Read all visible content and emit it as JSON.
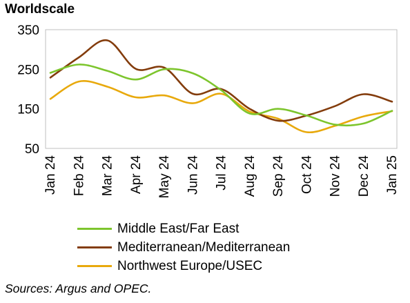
{
  "chart_data": {
    "type": "line",
    "title": "Worldscale",
    "xlabel": "",
    "ylabel": "",
    "categories": [
      "Jan 24",
      "Feb 24",
      "Mar 24",
      "Apr 24",
      "May 24",
      "Jun 24",
      "Jul 24",
      "Aug 24",
      "Sep 24",
      "Oct 24",
      "Nov 24",
      "Dec 24",
      "Jan 25"
    ],
    "ylim": [
      50,
      350
    ],
    "yticks": [
      50,
      150,
      250,
      350
    ],
    "grid": false,
    "legend_position": "bottom",
    "series": [
      {
        "name": "Middle East/Far East",
        "color": "#7dc52d",
        "values": [
          241,
          262,
          246,
          224,
          250,
          240,
          197,
          138,
          150,
          133,
          110,
          113,
          145
        ]
      },
      {
        "name": "Mediterranean/Mediterranean",
        "color": "#833c0c",
        "values": [
          229,
          280,
          323,
          251,
          254,
          188,
          200,
          150,
          120,
          133,
          157,
          187,
          168
        ]
      },
      {
        "name": "Northwest Europe/USEC",
        "color": "#e8a90c",
        "values": [
          175,
          219,
          206,
          179,
          184,
          164,
          188,
          143,
          125,
          91,
          107,
          131,
          144
        ]
      }
    ]
  },
  "footer": {
    "source": "Sources: Argus and OPEC."
  }
}
